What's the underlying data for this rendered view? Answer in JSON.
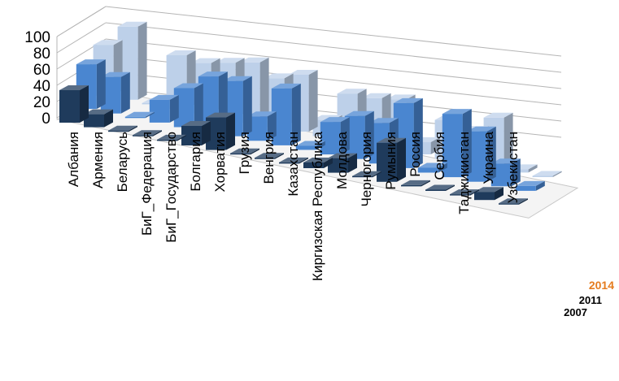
{
  "chart_data": {
    "type": "bar",
    "subtype": "3d-column",
    "categories": [
      "Албания",
      "Армения",
      "Беларусь",
      "БиГ_Федерация",
      "БиГ_Государство",
      "Болгария",
      "Хорватия",
      "Грузия",
      "Венгрия",
      "Казахстан",
      "Киргизская Республика",
      "Молдова",
      "Черногория",
      "Румыния",
      "Россия",
      "Сербия",
      "Таджикистан",
      "Украина",
      "Узбекистан"
    ],
    "y_ticks": [
      "0",
      "20",
      "40",
      "60",
      "80",
      "100"
    ],
    "ylim": [
      0,
      100
    ],
    "series": [
      {
        "name": "2007",
        "color": "#1f3b5c",
        "values": [
          40,
          16,
          0,
          0,
          0,
          24,
          40,
          0,
          0,
          0,
          7,
          18,
          0,
          48,
          0,
          0,
          0,
          10,
          0
        ]
      },
      {
        "name": "2011",
        "color": "#4a86d0",
        "values": [
          55,
          45,
          0,
          28,
          48,
          68,
          68,
          30,
          70,
          5,
          40,
          53,
          50,
          80,
          6,
          78,
          62,
          28,
          6
        ]
      },
      {
        "name": "2014",
        "color": "#bdd0e9",
        "values": [
          62,
          90,
          0,
          66,
          62,
          68,
          74,
          60,
          70,
          20,
          58,
          58,
          62,
          15,
          48,
          40,
          62,
          4,
          0
        ]
      }
    ],
    "legend": [
      {
        "label": "2014",
        "color": "#e57c1f"
      },
      {
        "label": "2011",
        "color": "#000000"
      },
      {
        "label": "2007",
        "color": "#000000"
      }
    ],
    "grid": true,
    "legend_position": "bottom-right"
  }
}
